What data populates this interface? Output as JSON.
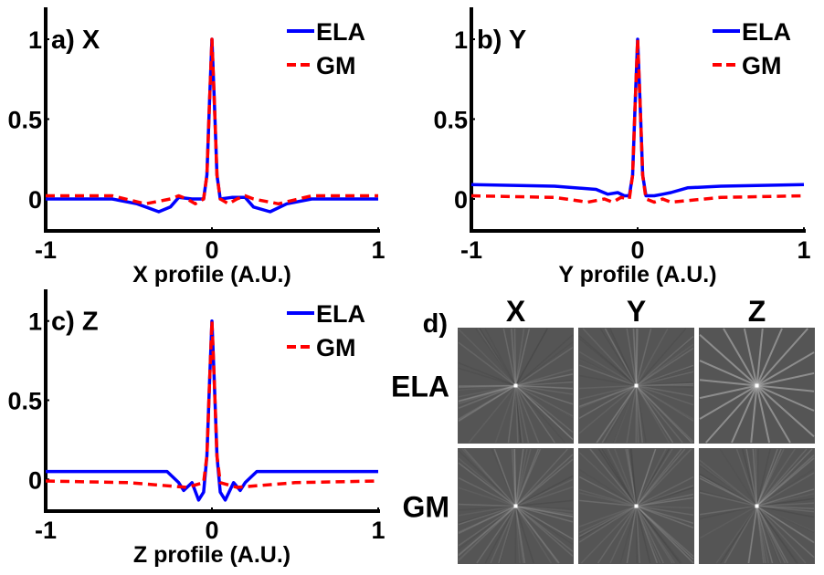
{
  "colors": {
    "ela": "#0000ff",
    "gm": "#ff0000",
    "image_bg": "#555555"
  },
  "chart_data": [
    {
      "type": "line",
      "title": "a) X",
      "xlabel": "X profile (A.U.)",
      "ylabel": "",
      "xlim": [
        -1,
        1
      ],
      "ylim": [
        -0.2,
        1.2
      ],
      "xticks": [
        "-1",
        "0",
        "1"
      ],
      "xtick_values": [
        -1,
        0,
        1
      ],
      "yticks": [
        "0",
        "0.5",
        "1"
      ],
      "ytick_values": [
        0,
        0.5,
        1
      ],
      "legend": "top-right",
      "series": [
        {
          "name": "ELA",
          "style": "solid",
          "color": "#0000ff",
          "x": [
            -1,
            -0.6,
            -0.45,
            -0.32,
            -0.25,
            -0.2,
            -0.12,
            -0.05,
            -0.03,
            -0.015,
            0,
            0.015,
            0.03,
            0.05,
            0.12,
            0.2,
            0.25,
            0.35,
            0.45,
            0.6,
            1
          ],
          "y": [
            0,
            0,
            -0.03,
            -0.08,
            -0.05,
            0.01,
            0,
            0,
            0.15,
            0.6,
            1.0,
            0.6,
            0.15,
            0,
            0.01,
            0.01,
            -0.05,
            -0.08,
            -0.03,
            0,
            0
          ]
        },
        {
          "name": "GM",
          "style": "dashed",
          "color": "#ff0000",
          "x": [
            -1,
            -0.6,
            -0.4,
            -0.25,
            -0.2,
            -0.15,
            -0.1,
            -0.05,
            -0.03,
            -0.015,
            0,
            0.015,
            0.03,
            0.05,
            0.1,
            0.15,
            0.2,
            0.25,
            0.4,
            0.6,
            1
          ],
          "y": [
            0.02,
            0.02,
            -0.03,
            0,
            0.02,
            0,
            -0.03,
            0,
            0.15,
            0.6,
            1.0,
            0.6,
            0.15,
            0,
            -0.03,
            0,
            0.02,
            0,
            -0.03,
            0.02,
            0.02
          ]
        }
      ]
    },
    {
      "type": "line",
      "title": "b) Y",
      "xlabel": "Y profile (A.U.)",
      "ylabel": "",
      "xlim": [
        -1,
        1
      ],
      "ylim": [
        -0.2,
        1.2
      ],
      "xticks": [
        "-1",
        "0",
        "1"
      ],
      "xtick_values": [
        -1,
        0,
        1
      ],
      "yticks": [
        "0",
        "0.5",
        "1"
      ],
      "ytick_values": [
        0,
        0.5,
        1
      ],
      "legend": "top-right",
      "series": [
        {
          "name": "ELA",
          "style": "solid",
          "color": "#0000ff",
          "x": [
            -1,
            -0.5,
            -0.25,
            -0.18,
            -0.12,
            -0.08,
            -0.05,
            -0.03,
            -0.015,
            0,
            0.015,
            0.03,
            0.05,
            0.1,
            0.15,
            0.2,
            0.3,
            0.5,
            1
          ],
          "y": [
            0.09,
            0.08,
            0.06,
            0.03,
            0.04,
            0.02,
            0.02,
            0.15,
            0.6,
            1.0,
            0.6,
            0.15,
            0.02,
            0.02,
            0.03,
            0.04,
            0.07,
            0.08,
            0.09
          ]
        },
        {
          "name": "GM",
          "style": "dashed",
          "color": "#ff0000",
          "x": [
            -1,
            -0.5,
            -0.3,
            -0.2,
            -0.15,
            -0.1,
            -0.05,
            -0.03,
            -0.015,
            0,
            0.015,
            0.03,
            0.05,
            0.1,
            0.15,
            0.2,
            0.3,
            0.5,
            1
          ],
          "y": [
            0.02,
            0.01,
            -0.02,
            0,
            -0.02,
            0.01,
            0,
            0.15,
            0.6,
            1.0,
            0.6,
            0.15,
            0,
            -0.02,
            0,
            -0.02,
            -0.01,
            0.01,
            0.02
          ]
        }
      ]
    },
    {
      "type": "line",
      "title": "c) Z",
      "xlabel": "Z profile (A.U.)",
      "ylabel": "",
      "xlim": [
        -1,
        1
      ],
      "ylim": [
        -0.2,
        1.2
      ],
      "xticks": [
        "-1",
        "0",
        "1"
      ],
      "xtick_values": [
        -1,
        0,
        1
      ],
      "yticks": [
        "0",
        "0.5",
        "1"
      ],
      "ytick_values": [
        0,
        0.5,
        1
      ],
      "legend": "top-right",
      "series": [
        {
          "name": "ELA",
          "style": "solid",
          "color": "#0000ff",
          "x": [
            -1,
            -0.27,
            -0.2,
            -0.17,
            -0.12,
            -0.08,
            -0.05,
            -0.03,
            -0.015,
            0,
            0.015,
            0.03,
            0.05,
            0.08,
            0.13,
            0.17,
            0.2,
            0.27,
            1
          ],
          "y": [
            0.05,
            0.05,
            -0.02,
            -0.07,
            -0.02,
            -0.13,
            -0.08,
            0.15,
            0.6,
            1.0,
            0.6,
            0.15,
            -0.08,
            -0.13,
            -0.02,
            -0.07,
            -0.02,
            0.05,
            0.05
          ]
        },
        {
          "name": "GM",
          "style": "dashed",
          "color": "#ff0000",
          "x": [
            -1,
            -0.5,
            -0.15,
            -0.05,
            -0.03,
            -0.015,
            0,
            0.015,
            0.03,
            0.05,
            0.15,
            0.5,
            1
          ],
          "y": [
            -0.01,
            -0.02,
            -0.05,
            -0.02,
            0.15,
            0.6,
            1.0,
            0.6,
            0.15,
            -0.02,
            -0.05,
            -0.02,
            -0.01
          ]
        }
      ]
    }
  ],
  "panel_d": {
    "title": "d)",
    "columns": [
      "X",
      "Y",
      "Z"
    ],
    "rows": [
      "ELA",
      "GM"
    ]
  }
}
